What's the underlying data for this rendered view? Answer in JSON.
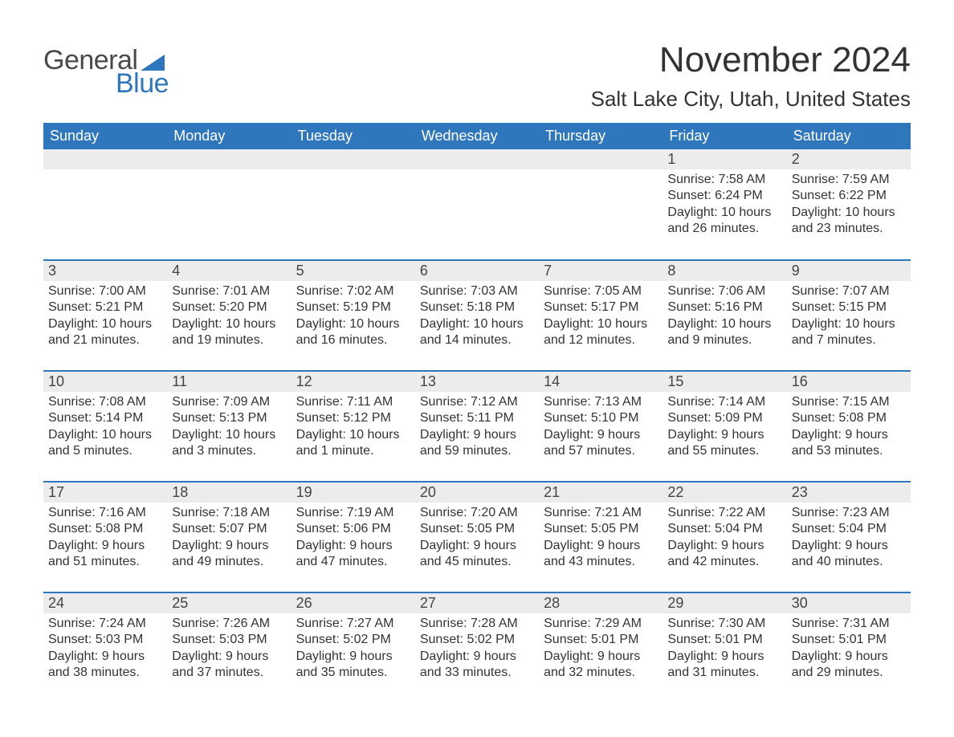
{
  "logo": {
    "text1": "General",
    "text2": "Blue",
    "shape_color": "#2f77bc"
  },
  "title": "November 2024",
  "location": "Salt Lake City, Utah, United States",
  "colors": {
    "header_bg": "#2f77bc",
    "header_text": "#ffffff",
    "daynum_bg": "#ececec",
    "border": "#2f77bc",
    "body_text": "#333333",
    "page_bg": "#ffffff"
  },
  "weekdays": [
    "Sunday",
    "Monday",
    "Tuesday",
    "Wednesday",
    "Thursday",
    "Friday",
    "Saturday"
  ],
  "labels": {
    "sunrise": "Sunrise:",
    "sunset": "Sunset:",
    "daylight": "Daylight:"
  },
  "weeks": [
    [
      null,
      null,
      null,
      null,
      null,
      {
        "n": "1",
        "sunrise": "7:58 AM",
        "sunset": "6:24 PM",
        "daylight": "10 hours and 26 minutes."
      },
      {
        "n": "2",
        "sunrise": "7:59 AM",
        "sunset": "6:22 PM",
        "daylight": "10 hours and 23 minutes."
      }
    ],
    [
      {
        "n": "3",
        "sunrise": "7:00 AM",
        "sunset": "5:21 PM",
        "daylight": "10 hours and 21 minutes."
      },
      {
        "n": "4",
        "sunrise": "7:01 AM",
        "sunset": "5:20 PM",
        "daylight": "10 hours and 19 minutes."
      },
      {
        "n": "5",
        "sunrise": "7:02 AM",
        "sunset": "5:19 PM",
        "daylight": "10 hours and 16 minutes."
      },
      {
        "n": "6",
        "sunrise": "7:03 AM",
        "sunset": "5:18 PM",
        "daylight": "10 hours and 14 minutes."
      },
      {
        "n": "7",
        "sunrise": "7:05 AM",
        "sunset": "5:17 PM",
        "daylight": "10 hours and 12 minutes."
      },
      {
        "n": "8",
        "sunrise": "7:06 AM",
        "sunset": "5:16 PM",
        "daylight": "10 hours and 9 minutes."
      },
      {
        "n": "9",
        "sunrise": "7:07 AM",
        "sunset": "5:15 PM",
        "daylight": "10 hours and 7 minutes."
      }
    ],
    [
      {
        "n": "10",
        "sunrise": "7:08 AM",
        "sunset": "5:14 PM",
        "daylight": "10 hours and 5 minutes."
      },
      {
        "n": "11",
        "sunrise": "7:09 AM",
        "sunset": "5:13 PM",
        "daylight": "10 hours and 3 minutes."
      },
      {
        "n": "12",
        "sunrise": "7:11 AM",
        "sunset": "5:12 PM",
        "daylight": "10 hours and 1 minute."
      },
      {
        "n": "13",
        "sunrise": "7:12 AM",
        "sunset": "5:11 PM",
        "daylight": "9 hours and 59 minutes."
      },
      {
        "n": "14",
        "sunrise": "7:13 AM",
        "sunset": "5:10 PM",
        "daylight": "9 hours and 57 minutes."
      },
      {
        "n": "15",
        "sunrise": "7:14 AM",
        "sunset": "5:09 PM",
        "daylight": "9 hours and 55 minutes."
      },
      {
        "n": "16",
        "sunrise": "7:15 AM",
        "sunset": "5:08 PM",
        "daylight": "9 hours and 53 minutes."
      }
    ],
    [
      {
        "n": "17",
        "sunrise": "7:16 AM",
        "sunset": "5:08 PM",
        "daylight": "9 hours and 51 minutes."
      },
      {
        "n": "18",
        "sunrise": "7:18 AM",
        "sunset": "5:07 PM",
        "daylight": "9 hours and 49 minutes."
      },
      {
        "n": "19",
        "sunrise": "7:19 AM",
        "sunset": "5:06 PM",
        "daylight": "9 hours and 47 minutes."
      },
      {
        "n": "20",
        "sunrise": "7:20 AM",
        "sunset": "5:05 PM",
        "daylight": "9 hours and 45 minutes."
      },
      {
        "n": "21",
        "sunrise": "7:21 AM",
        "sunset": "5:05 PM",
        "daylight": "9 hours and 43 minutes."
      },
      {
        "n": "22",
        "sunrise": "7:22 AM",
        "sunset": "5:04 PM",
        "daylight": "9 hours and 42 minutes."
      },
      {
        "n": "23",
        "sunrise": "7:23 AM",
        "sunset": "5:04 PM",
        "daylight": "9 hours and 40 minutes."
      }
    ],
    [
      {
        "n": "24",
        "sunrise": "7:24 AM",
        "sunset": "5:03 PM",
        "daylight": "9 hours and 38 minutes."
      },
      {
        "n": "25",
        "sunrise": "7:26 AM",
        "sunset": "5:03 PM",
        "daylight": "9 hours and 37 minutes."
      },
      {
        "n": "26",
        "sunrise": "7:27 AM",
        "sunset": "5:02 PM",
        "daylight": "9 hours and 35 minutes."
      },
      {
        "n": "27",
        "sunrise": "7:28 AM",
        "sunset": "5:02 PM",
        "daylight": "9 hours and 33 minutes."
      },
      {
        "n": "28",
        "sunrise": "7:29 AM",
        "sunset": "5:01 PM",
        "daylight": "9 hours and 32 minutes."
      },
      {
        "n": "29",
        "sunrise": "7:30 AM",
        "sunset": "5:01 PM",
        "daylight": "9 hours and 31 minutes."
      },
      {
        "n": "30",
        "sunrise": "7:31 AM",
        "sunset": "5:01 PM",
        "daylight": "9 hours and 29 minutes."
      }
    ]
  ]
}
